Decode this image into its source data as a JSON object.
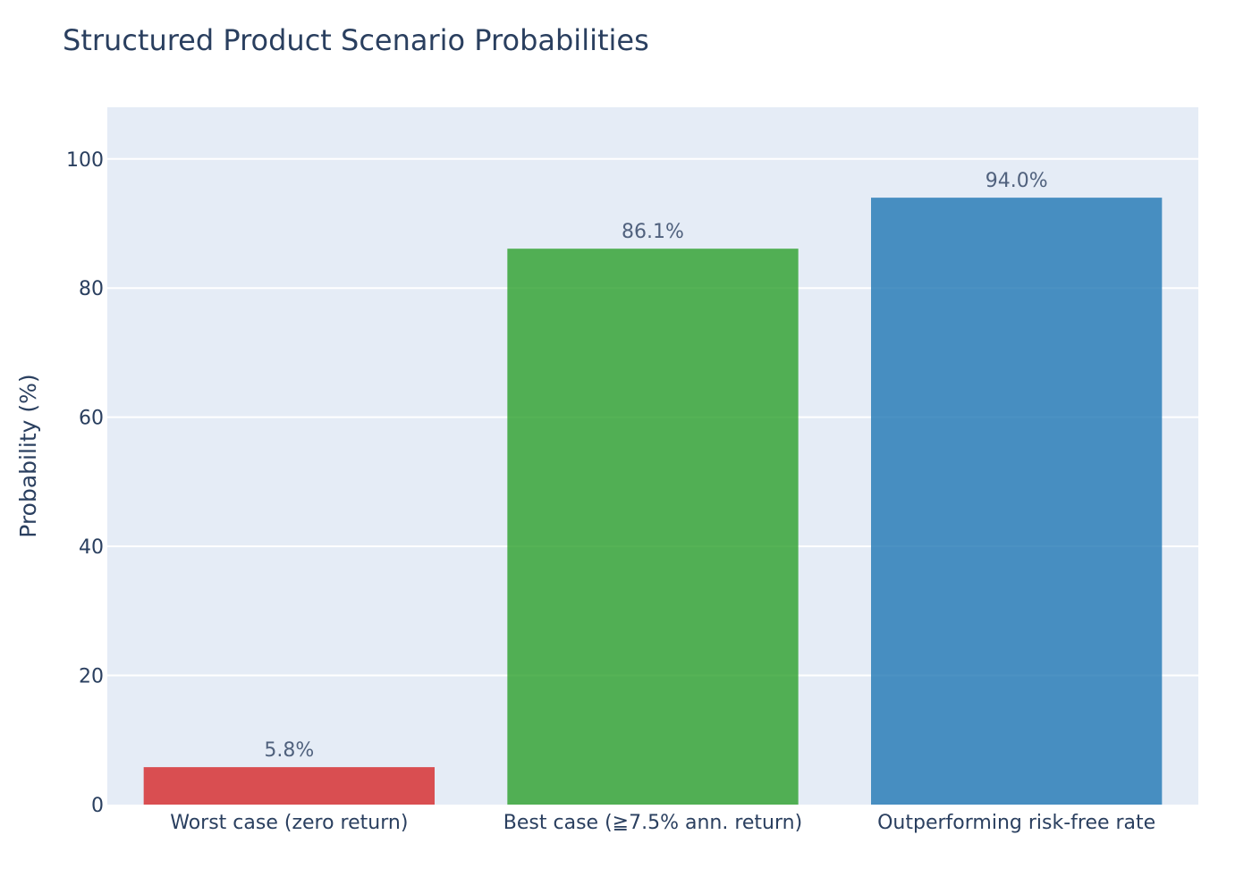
{
  "chart_data": {
    "type": "bar",
    "title": "Structured Product Scenario Probabilities",
    "xlabel": "",
    "ylabel": "Probability (%)",
    "ylim": [
      0,
      108
    ],
    "yticks": [
      0,
      20,
      40,
      60,
      80,
      100
    ],
    "grid": true,
    "categories": [
      "Worst case (zero return)",
      "Best case (≧7.5% ann. return)",
      "Outperforming risk-free rate"
    ],
    "values": [
      5.8,
      86.1,
      94.0
    ],
    "data_labels": [
      "5.8%",
      "86.1%",
      "94.0%"
    ],
    "colors": [
      "#d62728",
      "#2ca02c",
      "#1f77b4"
    ],
    "plot_background": "#e5ecf6",
    "text_color": "#2a3f5f"
  }
}
